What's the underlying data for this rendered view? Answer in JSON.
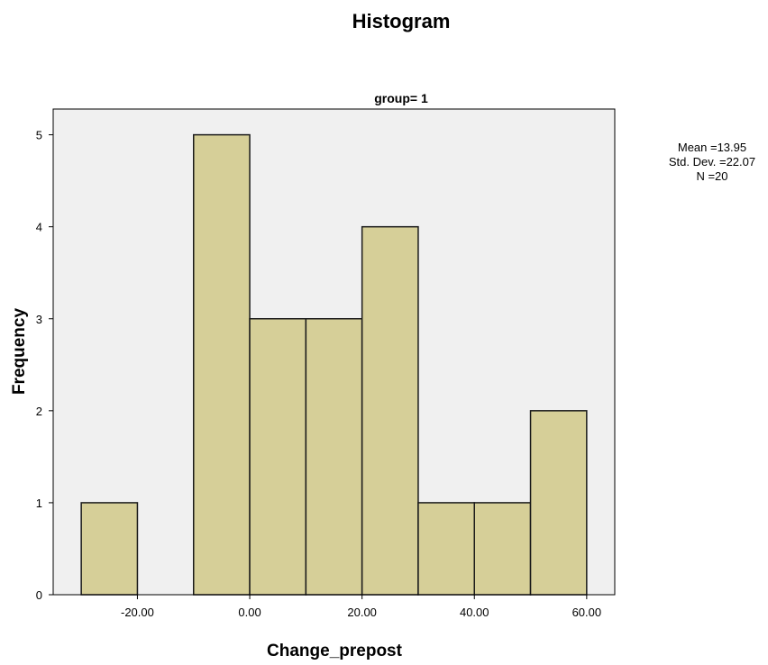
{
  "chart_data": {
    "type": "bar",
    "title": "Histogram",
    "panel_title": "group= 1",
    "xlabel": "Change_prepost",
    "ylabel": "Frequency",
    "bins": [
      {
        "x0": -30,
        "x1": -20,
        "value": 1
      },
      {
        "x0": -20,
        "x1": -10,
        "value": 0
      },
      {
        "x0": -10,
        "x1": 0,
        "value": 5
      },
      {
        "x0": 0,
        "x1": 10,
        "value": 3
      },
      {
        "x0": 10,
        "x1": 20,
        "value": 3
      },
      {
        "x0": 20,
        "x1": 30,
        "value": 4
      },
      {
        "x0": 30,
        "x1": 40,
        "value": 1
      },
      {
        "x0": 40,
        "x1": 50,
        "value": 1
      },
      {
        "x0": 50,
        "x1": 60,
        "value": 2
      }
    ],
    "xlim": [
      -35,
      65
    ],
    "ylim": [
      0,
      5.28
    ],
    "x_ticks": [
      {
        "value": -20,
        "label": "-20.00"
      },
      {
        "value": 0,
        "label": "0.00"
      },
      {
        "value": 20,
        "label": "20.00"
      },
      {
        "value": 40,
        "label": "40.00"
      },
      {
        "value": 60,
        "label": "60.00"
      }
    ],
    "y_ticks": [
      {
        "value": 0,
        "label": "0"
      },
      {
        "value": 1,
        "label": "1"
      },
      {
        "value": 2,
        "label": "2"
      },
      {
        "value": 3,
        "label": "3"
      },
      {
        "value": 4,
        "label": "4"
      },
      {
        "value": 5,
        "label": "5"
      }
    ],
    "stats": {
      "mean": "Mean =13.95",
      "std": "Std. Dev. =22.07",
      "n": "N =20"
    },
    "colors": {
      "bar_fill": "#d6cf98",
      "bar_stroke": "#1a1a1a",
      "plot_background": "#f0f0f0"
    },
    "grid": false
  }
}
